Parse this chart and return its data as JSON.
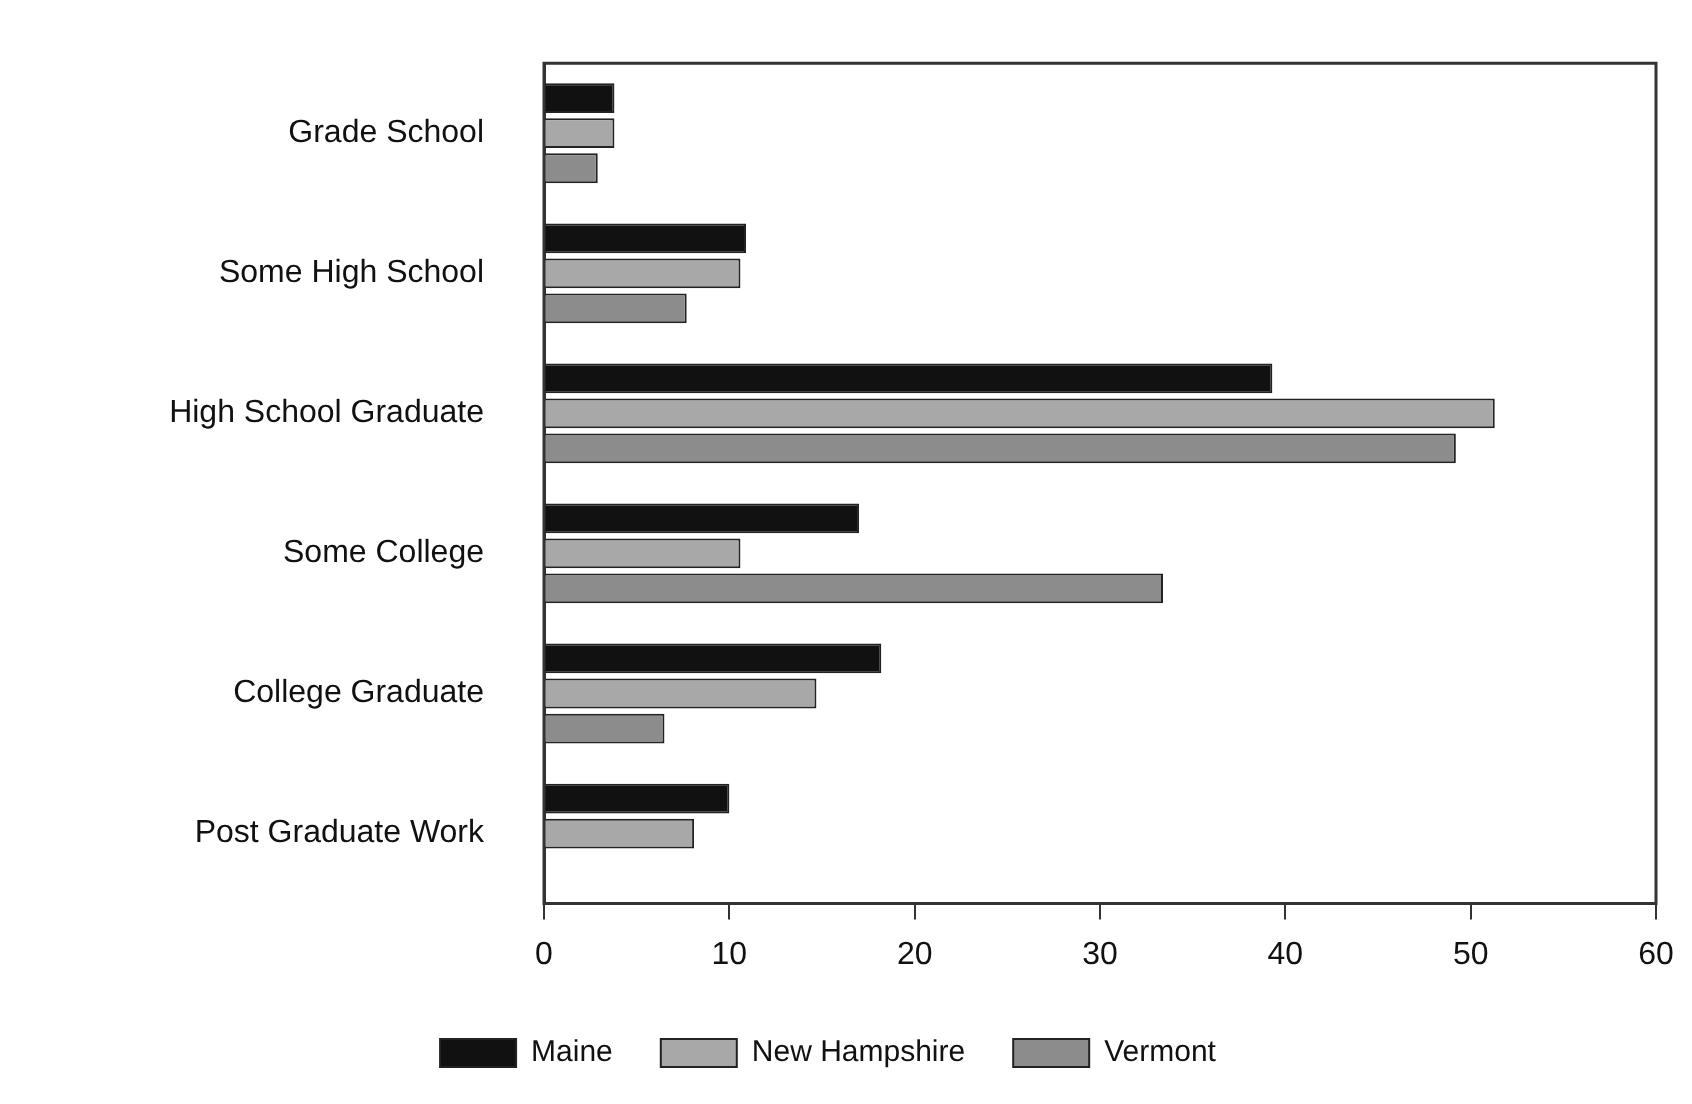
{
  "chart_data": {
    "type": "bar",
    "orientation": "horizontal",
    "categories": [
      "Grade School",
      "Some High School",
      "High School Graduate",
      "Some College",
      "College Graduate",
      "Post Graduate Work"
    ],
    "series": [
      {
        "name": "Maine",
        "color": "#111111",
        "values": [
          3.8,
          10.9,
          39.3,
          17.0,
          18.2,
          10.0
        ]
      },
      {
        "name": "New Hampshire",
        "color": "#a8a8a8",
        "values": [
          3.8,
          10.6,
          51.3,
          10.6,
          14.7,
          8.1
        ]
      },
      {
        "name": "Vermont",
        "color": "#8c8c8c",
        "values": [
          2.9,
          7.7,
          49.2,
          33.4,
          6.5,
          null
        ]
      }
    ],
    "xlim": [
      0,
      60
    ],
    "xticks": [
      0,
      10,
      20,
      30,
      40,
      50,
      60
    ],
    "grid": false,
    "legend": "bottom"
  }
}
